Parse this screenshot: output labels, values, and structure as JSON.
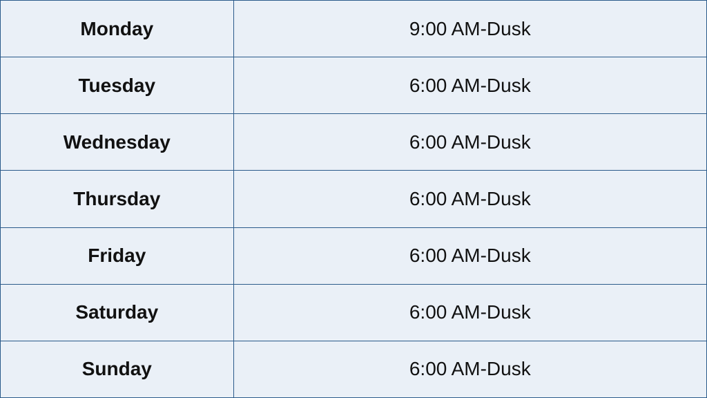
{
  "schedule": {
    "type": "table",
    "columns": [
      "day",
      "hours"
    ],
    "column_widths": [
      "33%",
      "67%"
    ],
    "rows": [
      {
        "day": "Monday",
        "hours": "9:00 AM-Dusk"
      },
      {
        "day": "Tuesday",
        "hours": "6:00 AM-Dusk"
      },
      {
        "day": "Wednesday",
        "hours": "6:00 AM-Dusk"
      },
      {
        "day": "Thursday",
        "hours": "6:00 AM-Dusk"
      },
      {
        "day": "Friday",
        "hours": "6:00 AM-Dusk"
      },
      {
        "day": "Saturday",
        "hours": "6:00 AM-Dusk"
      },
      {
        "day": "Sunday",
        "hours": "6:00 AM-Dusk"
      }
    ],
    "day_font_weight": 700,
    "hours_font_weight": 400,
    "font_size_pt": 21,
    "background_color": "#eaf0f7",
    "border_color": "#2a5a8a",
    "text_color": "#111111"
  }
}
